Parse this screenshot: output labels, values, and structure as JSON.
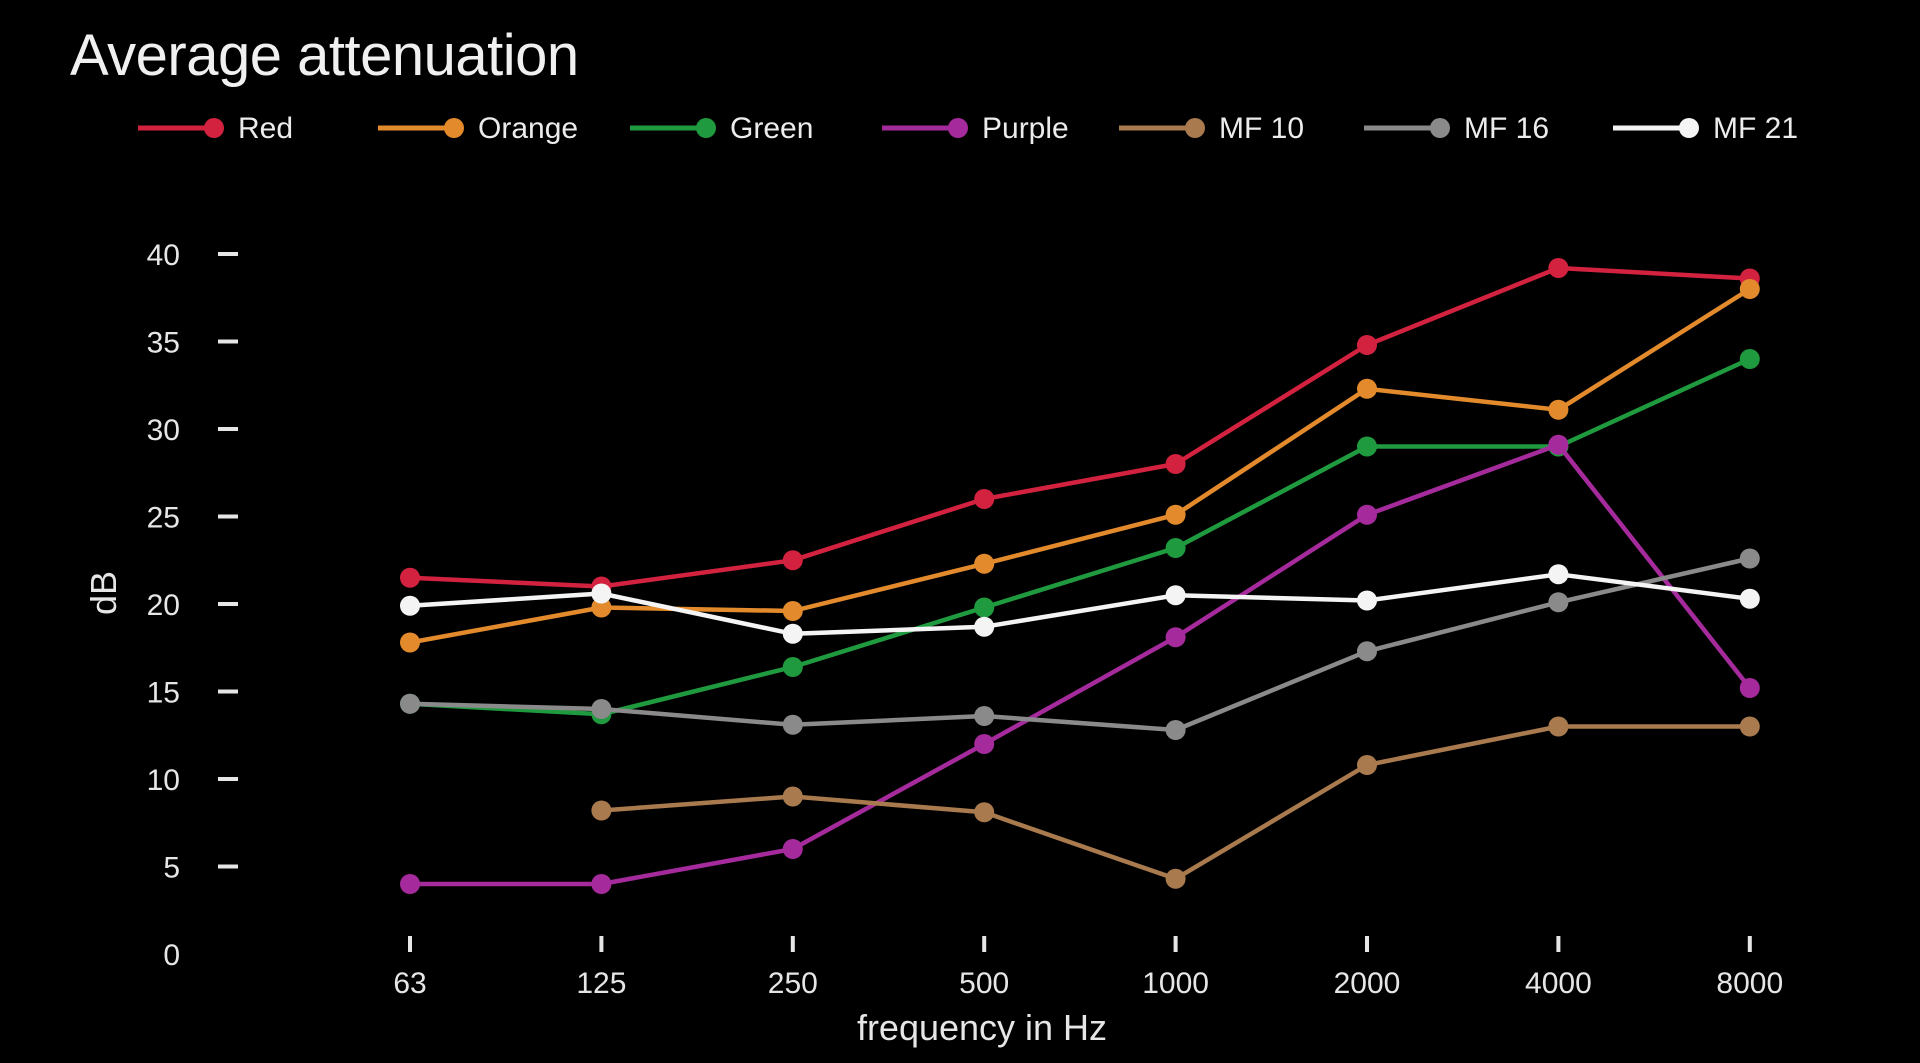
{
  "chart_data": {
    "type": "line",
    "title": "Average attenuation",
    "xlabel": "frequency in Hz",
    "ylabel": "dB",
    "categories": [
      "63",
      "125",
      "250",
      "500",
      "1000",
      "2000",
      "4000",
      "8000"
    ],
    "ylim": [
      0,
      40
    ],
    "yticks": [
      0,
      5,
      10,
      15,
      20,
      25,
      30,
      35,
      40
    ],
    "grid": false,
    "legend_position": "top",
    "series": [
      {
        "name": "Red",
        "color": "#d3223f",
        "values": [
          21.5,
          21,
          22.5,
          26,
          28,
          34.8,
          39.2,
          38.6
        ]
      },
      {
        "name": "Orange",
        "color": "#e38a2c",
        "values": [
          17.8,
          19.8,
          19.6,
          22.3,
          25.1,
          32.3,
          31.1,
          38
        ]
      },
      {
        "name": "Green",
        "color": "#1f9a3f",
        "values": [
          14.3,
          13.7,
          16.4,
          19.8,
          23.2,
          29,
          29,
          34
        ]
      },
      {
        "name": "Purple",
        "color": "#a52a9c",
        "values": [
          4,
          4,
          6,
          12,
          18.1,
          25.1,
          29.1,
          15.2
        ]
      },
      {
        "name": "MF 10",
        "color": "#a87a4e",
        "values": [
          null,
          8.2,
          9,
          8.1,
          4.3,
          10.8,
          13,
          13
        ]
      },
      {
        "name": "MF 16",
        "color": "#8a8a8a",
        "values": [
          14.3,
          14,
          13.1,
          13.6,
          12.8,
          17.3,
          20.1,
          22.6
        ]
      },
      {
        "name": "MF 21",
        "color": "#f4f4f4",
        "values": [
          19.9,
          20.6,
          18.3,
          18.7,
          20.5,
          20.2,
          21.7,
          20.3
        ]
      }
    ]
  }
}
